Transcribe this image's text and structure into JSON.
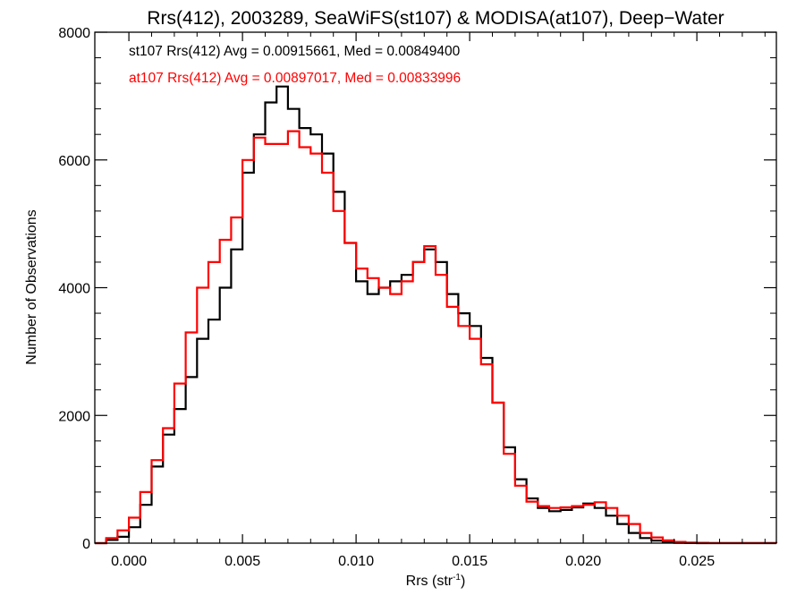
{
  "chart_data": {
    "type": "line",
    "title": "Rrs(412), 2003289, SeaWiFS(st107) & MODISA(at107), Deep−Water",
    "xlabel_main": "Rrs (str",
    "xlabel_sup": "-1",
    "xlabel_close": ")",
    "ylabel": "Number of Observations",
    "xlim": [
      -0.0015,
      0.0285
    ],
    "ylim": [
      0,
      8000
    ],
    "xticks": [
      0.0,
      0.005,
      0.01,
      0.015,
      0.02,
      0.025
    ],
    "xtick_labels": [
      "0.000",
      "0.005",
      "0.010",
      "0.015",
      "0.020",
      "0.025"
    ],
    "yticks": [
      0,
      2000,
      4000,
      6000,
      8000
    ],
    "ytick_labels": [
      "0",
      "2000",
      "4000",
      "6000",
      "8000"
    ],
    "annotations": [
      {
        "text": "st107 Rrs(412) Avg = 0.00915661, Med = 0.00849400",
        "color": "#000000"
      },
      {
        "text": "at107 Rrs(412) Avg = 0.00897017, Med = 0.00833996",
        "color": "#ff0000"
      }
    ],
    "series": [
      {
        "color": "#000000",
        "points": [
          [
            -0.0015,
            0
          ],
          [
            -0.001,
            50
          ],
          [
            -0.0005,
            100
          ],
          [
            0.0,
            250
          ],
          [
            0.0005,
            600
          ],
          [
            0.001,
            1200
          ],
          [
            0.0015,
            1700
          ],
          [
            0.002,
            2100
          ],
          [
            0.0025,
            2600
          ],
          [
            0.003,
            3200
          ],
          [
            0.0035,
            3500
          ],
          [
            0.004,
            4000
          ],
          [
            0.0045,
            4600
          ],
          [
            0.005,
            5800
          ],
          [
            0.0055,
            6400
          ],
          [
            0.006,
            6900
          ],
          [
            0.0065,
            7150
          ],
          [
            0.007,
            6800
          ],
          [
            0.0075,
            6500
          ],
          [
            0.008,
            6400
          ],
          [
            0.0085,
            6100
          ],
          [
            0.009,
            5500
          ],
          [
            0.0095,
            4700
          ],
          [
            0.01,
            4100
          ],
          [
            0.0105,
            3900
          ],
          [
            0.011,
            4000
          ],
          [
            0.0115,
            4100
          ],
          [
            0.012,
            4200
          ],
          [
            0.0125,
            4400
          ],
          [
            0.013,
            4600
          ],
          [
            0.0135,
            4400
          ],
          [
            0.014,
            3900
          ],
          [
            0.0145,
            3600
          ],
          [
            0.015,
            3400
          ],
          [
            0.0155,
            2900
          ],
          [
            0.016,
            2200
          ],
          [
            0.0165,
            1500
          ],
          [
            0.017,
            1000
          ],
          [
            0.0175,
            700
          ],
          [
            0.018,
            550
          ],
          [
            0.0185,
            500
          ],
          [
            0.019,
            520
          ],
          [
            0.0195,
            560
          ],
          [
            0.02,
            620
          ],
          [
            0.0205,
            550
          ],
          [
            0.021,
            430
          ],
          [
            0.0215,
            300
          ],
          [
            0.022,
            160
          ],
          [
            0.0225,
            80
          ],
          [
            0.023,
            40
          ],
          [
            0.0235,
            15
          ],
          [
            0.024,
            5
          ],
          [
            0.0245,
            2
          ],
          [
            0.025,
            0
          ],
          [
            0.0285,
            0
          ]
        ]
      },
      {
        "color": "#ff0000",
        "points": [
          [
            -0.0015,
            0
          ],
          [
            -0.001,
            80
          ],
          [
            -0.0005,
            200
          ],
          [
            0.0,
            400
          ],
          [
            0.0005,
            800
          ],
          [
            0.001,
            1300
          ],
          [
            0.0015,
            1800
          ],
          [
            0.002,
            2500
          ],
          [
            0.0025,
            3300
          ],
          [
            0.003,
            4000
          ],
          [
            0.0035,
            4400
          ],
          [
            0.004,
            4750
          ],
          [
            0.0045,
            5100
          ],
          [
            0.005,
            6000
          ],
          [
            0.0055,
            6350
          ],
          [
            0.006,
            6250
          ],
          [
            0.0065,
            6250
          ],
          [
            0.007,
            6450
          ],
          [
            0.0075,
            6200
          ],
          [
            0.008,
            6100
          ],
          [
            0.0085,
            5800
          ],
          [
            0.009,
            5200
          ],
          [
            0.0095,
            4700
          ],
          [
            0.01,
            4300
          ],
          [
            0.0105,
            4150
          ],
          [
            0.011,
            4000
          ],
          [
            0.0115,
            3900
          ],
          [
            0.012,
            4100
          ],
          [
            0.0125,
            4400
          ],
          [
            0.013,
            4650
          ],
          [
            0.0135,
            4200
          ],
          [
            0.014,
            3700
          ],
          [
            0.0145,
            3400
          ],
          [
            0.015,
            3200
          ],
          [
            0.0155,
            2800
          ],
          [
            0.016,
            2200
          ],
          [
            0.0165,
            1400
          ],
          [
            0.017,
            900
          ],
          [
            0.0175,
            650
          ],
          [
            0.018,
            580
          ],
          [
            0.0185,
            550
          ],
          [
            0.019,
            560
          ],
          [
            0.0195,
            580
          ],
          [
            0.02,
            600
          ],
          [
            0.0205,
            640
          ],
          [
            0.021,
            550
          ],
          [
            0.0215,
            430
          ],
          [
            0.022,
            300
          ],
          [
            0.0225,
            160
          ],
          [
            0.023,
            90
          ],
          [
            0.0235,
            45
          ],
          [
            0.024,
            20
          ],
          [
            0.0245,
            10
          ],
          [
            0.025,
            5
          ],
          [
            0.0255,
            2
          ],
          [
            0.026,
            1
          ],
          [
            0.0285,
            0
          ]
        ]
      }
    ]
  }
}
